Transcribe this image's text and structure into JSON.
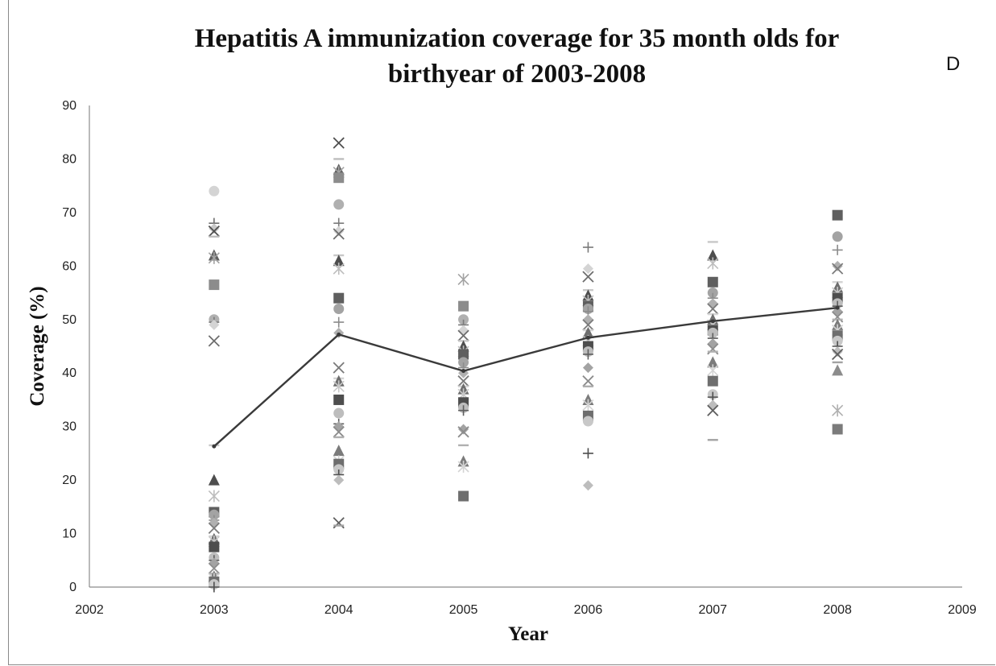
{
  "panel_label": "D",
  "chart_data": {
    "type": "scatter",
    "title": "Hepatitis A immunization coverage for 35 month olds for\nbirthyear of 2003-2008",
    "xlabel": "Year",
    "ylabel": "Coverage (%)",
    "xlim": [
      2002,
      2009
    ],
    "ylim": [
      0,
      90
    ],
    "xticks": [
      2002,
      2003,
      2004,
      2005,
      2006,
      2007,
      2008,
      2009
    ],
    "yticks": [
      0,
      10,
      20,
      30,
      40,
      50,
      60,
      70,
      80,
      90
    ],
    "grid": false,
    "legend": "none",
    "mean_line": {
      "x": [
        2003,
        2004,
        2005,
        2006,
        2007,
        2008
      ],
      "y": [
        26.3,
        47.2,
        40.4,
        46.6,
        49.7,
        52.2
      ]
    },
    "points": {
      "2003": [
        74,
        68,
        67,
        66.5,
        65.5,
        62,
        61.5,
        56.5,
        50,
        49.5,
        49,
        46,
        26.5,
        20,
        17,
        14,
        13.5,
        12.5,
        12,
        11,
        9.5,
        9,
        8.5,
        7.5,
        5.5,
        5,
        4.5,
        3.5,
        2.5,
        2,
        1.5,
        1,
        0.5,
        0
      ],
      "2004": [
        83,
        80,
        78,
        77.5,
        76.5,
        71.5,
        68,
        66.5,
        66,
        62,
        61,
        59.5,
        54,
        52,
        49.5,
        47.5,
        41,
        39,
        38.5,
        37.5,
        35,
        32.5,
        30.5,
        30,
        29,
        28,
        25.5,
        23.5,
        23,
        22,
        21,
        20,
        12,
        11.5
      ],
      "2005": [
        57.5,
        52.5,
        50,
        49,
        48,
        47,
        46,
        45,
        44,
        43.5,
        42,
        41,
        40,
        38.5,
        37.5,
        37,
        36,
        34.5,
        33.5,
        33,
        29.5,
        29,
        26.5,
        23.5,
        22.5,
        17
      ],
      "2006": [
        63.5,
        59.5,
        58,
        55.5,
        54.5,
        53.5,
        52.5,
        52,
        51.5,
        50,
        49,
        48,
        47.5,
        46,
        45,
        44,
        43.5,
        41,
        38.5,
        37.5,
        35,
        34,
        32,
        31,
        25,
        19
      ],
      "2007": [
        64.5,
        62,
        60.5,
        57,
        55,
        54,
        53,
        52,
        51,
        50,
        49,
        48,
        47.5,
        46.5,
        45.5,
        44.5,
        44,
        42,
        40.5,
        38.5,
        36,
        35.5,
        34,
        33,
        27.5
      ],
      "2008": [
        69.5,
        65.5,
        63,
        60,
        59.5,
        57,
        56,
        55,
        54,
        53,
        52.5,
        51.5,
        50.5,
        50,
        49,
        48,
        47,
        46,
        45,
        44,
        43.5,
        42,
        40.5,
        33,
        29.5
      ]
    }
  }
}
